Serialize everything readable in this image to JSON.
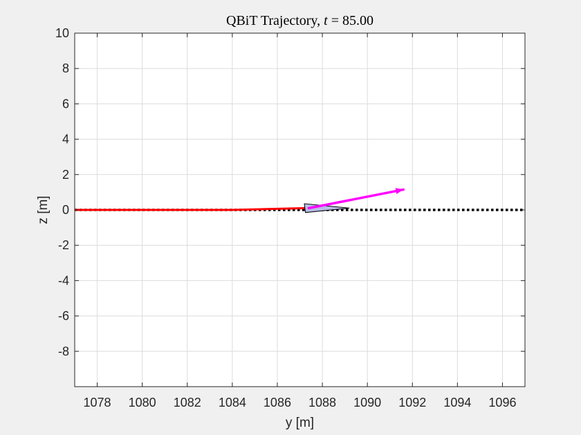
{
  "chart_data": {
    "type": "line",
    "title": "QBiT Trajectory, t = 85.00",
    "title_parts": {
      "prefix": "QBiT Trajectory, ",
      "var": "t",
      "suffix": " = 85.00"
    },
    "xlabel": "y [m]",
    "ylabel": "z [m]",
    "xlim": [
      1077.0,
      1097.0
    ],
    "ylim": [
      -10,
      10
    ],
    "xticks": [
      1078,
      1080,
      1082,
      1084,
      1086,
      1088,
      1090,
      1092,
      1094,
      1096
    ],
    "yticks": [
      -8,
      -6,
      -4,
      -2,
      0,
      2,
      4,
      6,
      8,
      10
    ],
    "grid": true,
    "series": [
      {
        "style": "reference-path",
        "color": "#000000",
        "line": "dotted",
        "x": [
          1077.0,
          1097.0
        ],
        "y": [
          0.0,
          0.0
        ]
      },
      {
        "style": "trajectory",
        "color": "#ff0000",
        "line": "solid",
        "x": [
          1077.0,
          1084.0,
          1087.3
        ],
        "y": [
          0.0,
          0.0,
          0.1
        ]
      }
    ],
    "vehicle": {
      "outline_color": "#000000",
      "fill_color": "#b8bbe6",
      "nose": [
        1089.2,
        0.1
      ],
      "tail_top": [
        1087.2,
        0.35
      ],
      "tail_bottom": [
        1087.25,
        -0.15
      ]
    },
    "velocity_arrow": {
      "color": "#ff00ff",
      "from": [
        1087.4,
        0.1
      ],
      "to": [
        1091.6,
        1.15
      ]
    }
  }
}
